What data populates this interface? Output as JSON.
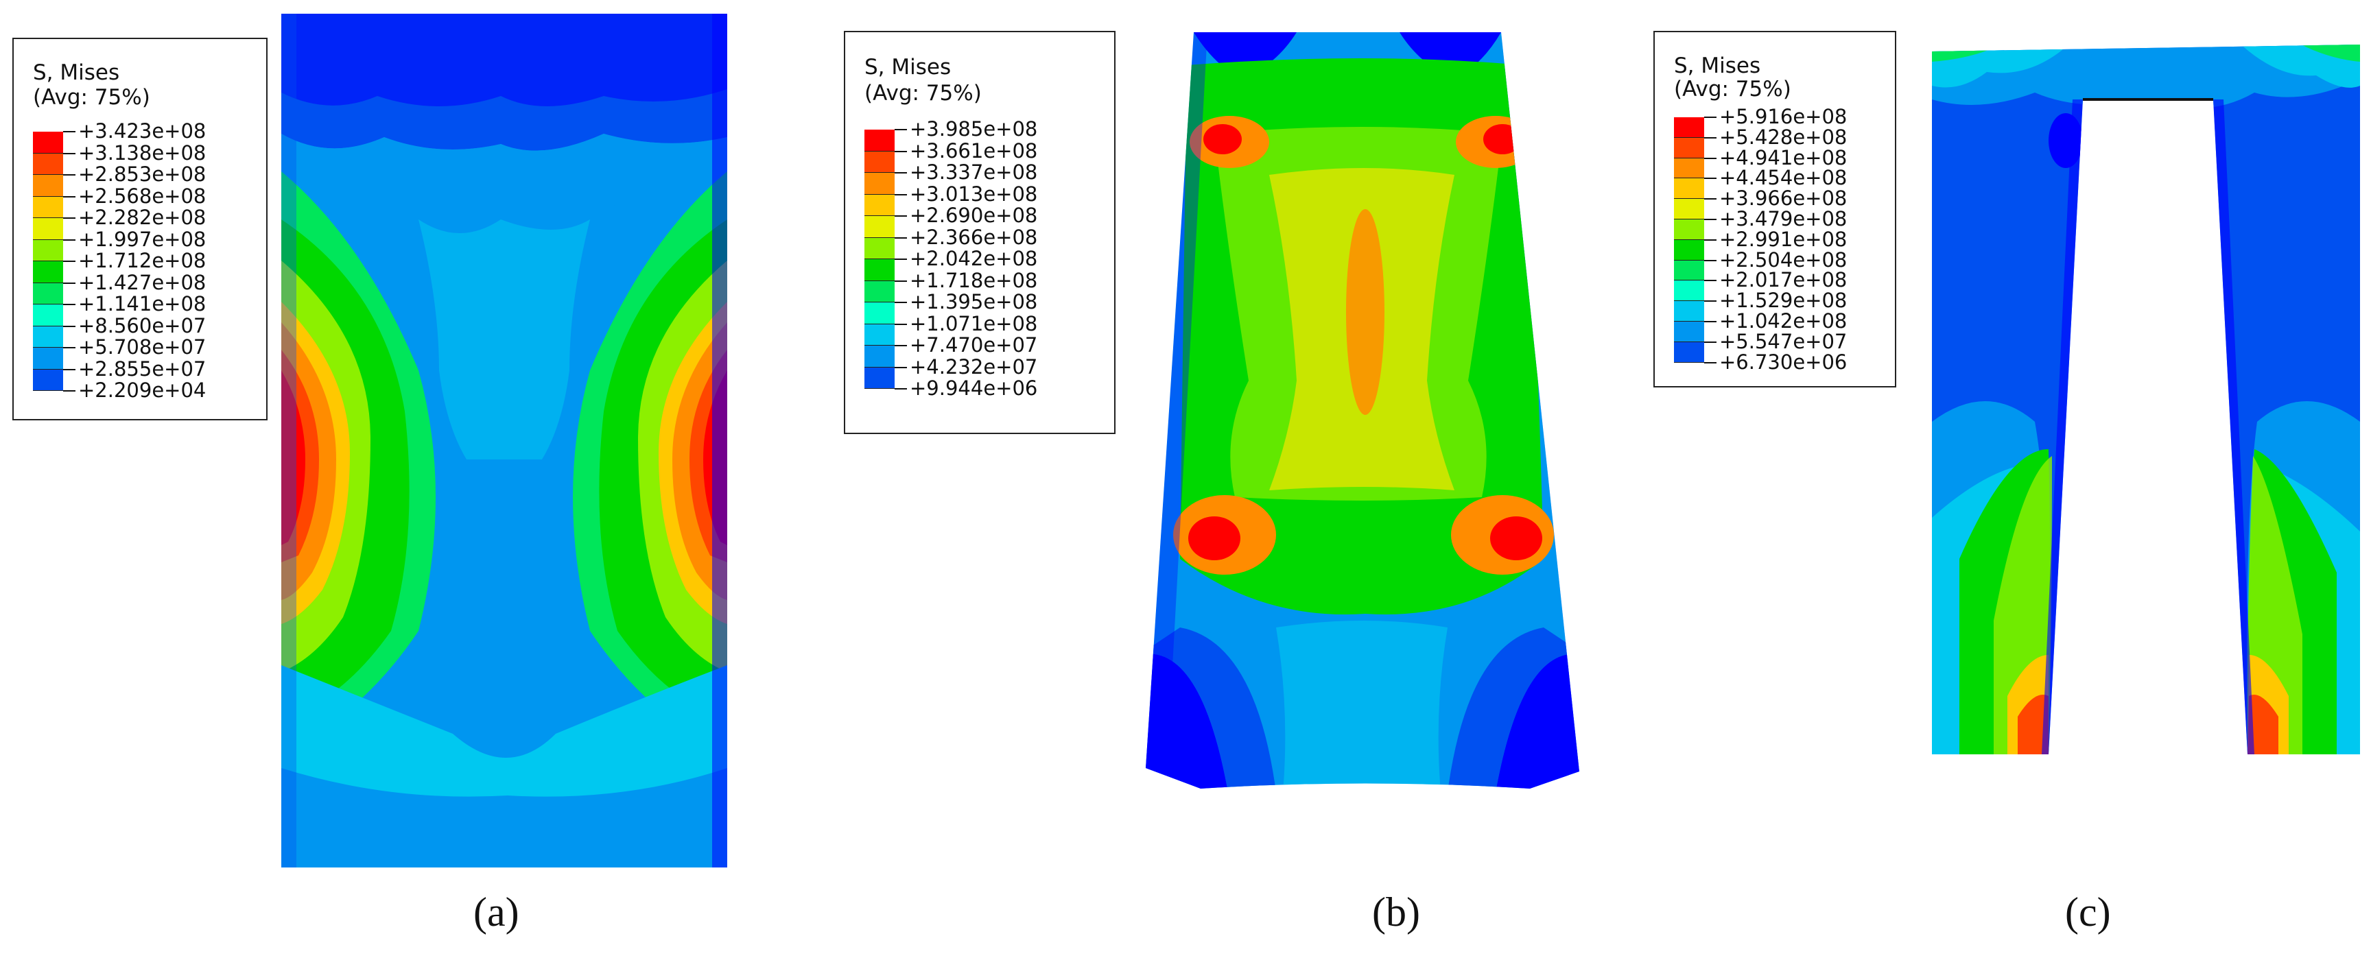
{
  "panels": [
    {
      "id": "a",
      "caption": "(a)",
      "legend": {
        "title": "S, Mises",
        "subtitle": "(Avg: 75%)",
        "values": [
          "+3.423e+08",
          "+3.138e+08",
          "+2.853e+08",
          "+2.568e+08",
          "+2.282e+08",
          "+1.997e+08",
          "+1.712e+08",
          "+1.427e+08",
          "+1.141e+08",
          "+8.560e+07",
          "+5.708e+07",
          "+2.855e+07",
          "+2.209e+04"
        ]
      }
    },
    {
      "id": "b",
      "caption": "(b)",
      "legend": {
        "title": "S, Mises",
        "subtitle": "(Avg: 75%)",
        "values": [
          "+3.985e+08",
          "+3.661e+08",
          "+3.337e+08",
          "+3.013e+08",
          "+2.690e+08",
          "+2.366e+08",
          "+2.042e+08",
          "+1.718e+08",
          "+1.395e+08",
          "+1.071e+08",
          "+7.470e+07",
          "+4.232e+07",
          "+9.944e+06"
        ]
      }
    },
    {
      "id": "c",
      "caption": "(c)",
      "legend": {
        "title": "S, Mises",
        "subtitle": "(Avg: 75%)",
        "values": [
          "+5.916e+08",
          "+5.428e+08",
          "+4.941e+08",
          "+4.454e+08",
          "+3.966e+08",
          "+3.479e+08",
          "+2.991e+08",
          "+2.504e+08",
          "+2.017e+08",
          "+1.529e+08",
          "+1.042e+08",
          "+5.547e+07",
          "+6.730e+06"
        ]
      }
    }
  ],
  "colormap": [
    "#ff0000",
    "#ff4600",
    "#ff8c00",
    "#ffc800",
    "#e6f000",
    "#8cf000",
    "#00d800",
    "#00e65a",
    "#00ffc8",
    "#00c8f0",
    "#0096f0",
    "#0050f0",
    "#0000ff"
  ]
}
